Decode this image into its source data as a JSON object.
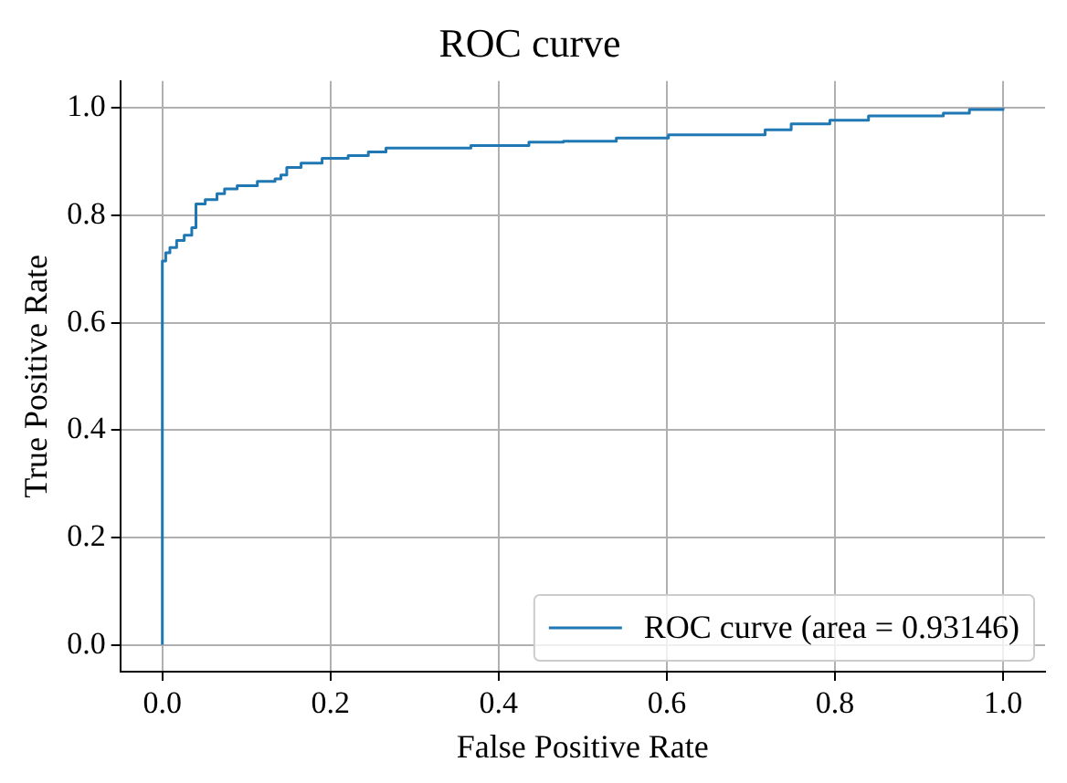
{
  "chart_data": {
    "type": "step",
    "title": "ROC curve",
    "xlabel": "False Positive Rate",
    "ylabel": "True Positive Rate",
    "series": [
      {
        "name": "ROC curve (area = 0.93146)",
        "color": "#1f77b4",
        "x": [
          0,
          0,
          0.004,
          0.009,
          0.017,
          0.026,
          0.035,
          0.04,
          0.051,
          0.065,
          0.074,
          0.089,
          0.113,
          0.134,
          0.141,
          0.148,
          0.165,
          0.19,
          0.221,
          0.245,
          0.266,
          0.367,
          0.436,
          0.477,
          0.54,
          0.602,
          0.717,
          0.748,
          0.794,
          0.84,
          0.929,
          0.96,
          1.0
        ],
        "values": [
          0,
          0.715,
          0.73,
          0.74,
          0.753,
          0.763,
          0.777,
          0.821,
          0.829,
          0.84,
          0.849,
          0.855,
          0.863,
          0.868,
          0.875,
          0.889,
          0.897,
          0.906,
          0.911,
          0.918,
          0.925,
          0.93,
          0.936,
          0.938,
          0.944,
          0.95,
          0.959,
          0.97,
          0.977,
          0.985,
          0.99,
          0.997,
          1.0
        ]
      }
    ],
    "xlim": [
      -0.05,
      1.05
    ],
    "ylim": [
      -0.05,
      1.05
    ],
    "xticks": [
      {
        "value": 0,
        "label": "0.0"
      },
      {
        "value": 0.2,
        "label": "0.2"
      },
      {
        "value": 0.4,
        "label": "0.4"
      },
      {
        "value": 0.6,
        "label": "0.6"
      },
      {
        "value": 0.8,
        "label": "0.8"
      },
      {
        "value": 1,
        "label": "1.0"
      }
    ],
    "yticks": [
      {
        "value": 0,
        "label": "0.0"
      },
      {
        "value": 0.2,
        "label": "0.2"
      },
      {
        "value": 0.4,
        "label": "0.4"
      },
      {
        "value": 0.6,
        "label": "0.6"
      },
      {
        "value": 0.8,
        "label": "0.8"
      },
      {
        "value": 1,
        "label": "1.0"
      }
    ],
    "grid": true,
    "legend": "bottom right",
    "marker": "none",
    "line_style": "solid"
  }
}
